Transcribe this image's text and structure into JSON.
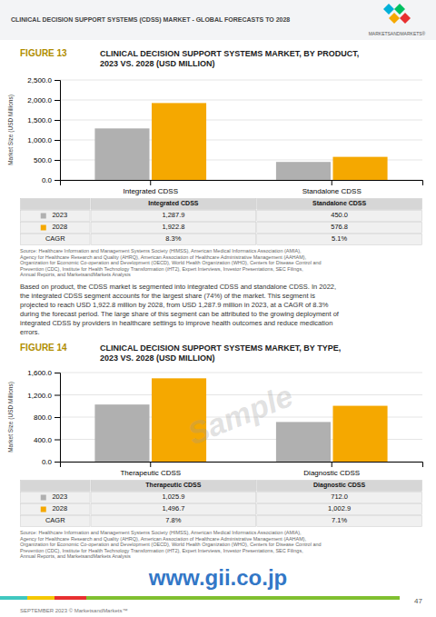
{
  "header": "CLINICAL DECISION SUPPORT SYSTEMS (CDSS) MARKET - GLOBAL FORECASTS TO 2028",
  "logo_text": "MARKETSANDMARKETS®",
  "body_text": "Based on product, the CDSS market is segmented into integrated CDSS and standalone CDSS. In 2022,\nthe integrated CDSS segment accounts for the largest share (74%) of the market. This segment is\nprojected to reach USD 1,922.8 million by 2028, from USD 1,287.9 million in 2023, at a CAGR of 8.3%\nduring the forecast period. The large share of this segment can be attributed to the growing deployment of\nintegrated CDSS by providers in healthcare settings to improve health outcomes and reduce medication\nerrors.",
  "watermark": "Sample",
  "watermark2": "www.gii.co.jp",
  "footer": "SEPTEMBER 2023 © MarketsandMarkets™",
  "page_number": "47",
  "chart_data": [
    {
      "type": "bar",
      "figure_label": "FIGURE 13",
      "title": "CLINICAL DECISION SUPPORT SYSTEMS MARKET, BY PRODUCT,\n2023 VS. 2028 (USD MILLION)",
      "ylabel": "Market Size (USD Millions)",
      "categories": [
        "Integrated CDSS",
        "Standalone CDSS"
      ],
      "series": [
        {
          "name": "2023",
          "color": "#b0b0b0",
          "values": [
            1287.9,
            450.0
          ],
          "value_labels": [
            "1,287.9",
            "450.0"
          ]
        },
        {
          "name": "2028",
          "color": "#f5a800",
          "values": [
            1922.8,
            576.8
          ],
          "value_labels": [
            "1,922.8",
            "576.8"
          ]
        }
      ],
      "cagr_label": "CAGR",
      "cagr": [
        "8.3%",
        "5.1%"
      ],
      "ylim": [
        0,
        2500.0
      ],
      "yticks": [
        {
          "value": 0,
          "label": "0.0"
        },
        {
          "value": 500,
          "label": "500.0"
        },
        {
          "value": 1000,
          "label": "1,000.0"
        },
        {
          "value": 1500,
          "label": "1,500.0"
        },
        {
          "value": 2000,
          "label": "2,000.0"
        },
        {
          "value": 2500,
          "label": "2,500.0"
        }
      ],
      "grid": true,
      "source": "Source: Healthcare Information and Management Systems Society (HIMSS), American Medical Informatics Association (AMIA),\nAgency for Healthcare Research and Quality (AHRQ), American Association of Healthcare Administrative Management (AAHAM),\nOrganization for Economic Co-operation and Development (OECD), World Health Organization (WHO), Centers for Disease Control and\nPrevention (CDC), Institute for Health Technology Transformation (iHT2), Expert Interviews, Investor Presentations, SEC Filings,\nAnnual Reports, and MarketsandMarkets Analysis"
    },
    {
      "type": "bar",
      "figure_label": "FIGURE 14",
      "title": "CLINICAL DECISION SUPPORT SYSTEMS MARKET, BY TYPE,\n2023 VS. 2028 (USD MILLION)",
      "ylabel": "Market Size (USD Millions)",
      "categories": [
        "Therapeutic CDSS",
        "Diagnostic CDSS"
      ],
      "series": [
        {
          "name": "2023",
          "color": "#b0b0b0",
          "values": [
            1025.9,
            712.0
          ],
          "value_labels": [
            "1,025.9",
            "712.0"
          ]
        },
        {
          "name": "2028",
          "color": "#f5a800",
          "values": [
            1496.7,
            1002.9
          ],
          "value_labels": [
            "1,496.7",
            "1,002.9"
          ]
        }
      ],
      "cagr_label": "CAGR",
      "cagr": [
        "7.8%",
        "7.1%"
      ],
      "ylim": [
        0,
        1600.0
      ],
      "yticks": [
        {
          "value": 0,
          "label": "0.0"
        },
        {
          "value": 400,
          "label": "400.0"
        },
        {
          "value": 800,
          "label": "800.0"
        },
        {
          "value": 1200,
          "label": "1,200.0"
        },
        {
          "value": 1600,
          "label": "1,600.0"
        }
      ],
      "grid": true,
      "source": "Source: Healthcare Information and Management Systems Society (HIMSS), American Medical Informatics Association (AMIA),\nAgency for Healthcare Research and Quality (AHRQ), American Association of Healthcare Administrative Management (AAHAM),\nOrganization for Economic Co-operation and Development (OECD), World Health Organization (WHO), Centers for Disease Control and\nPrevention (CDC), Institute for Health Technology Transformation (iHT2), Expert Interviews, Investor Presentations, SEC Filings,\nAnnual Reports, and MarketsandMarkets Analysis"
    }
  ]
}
